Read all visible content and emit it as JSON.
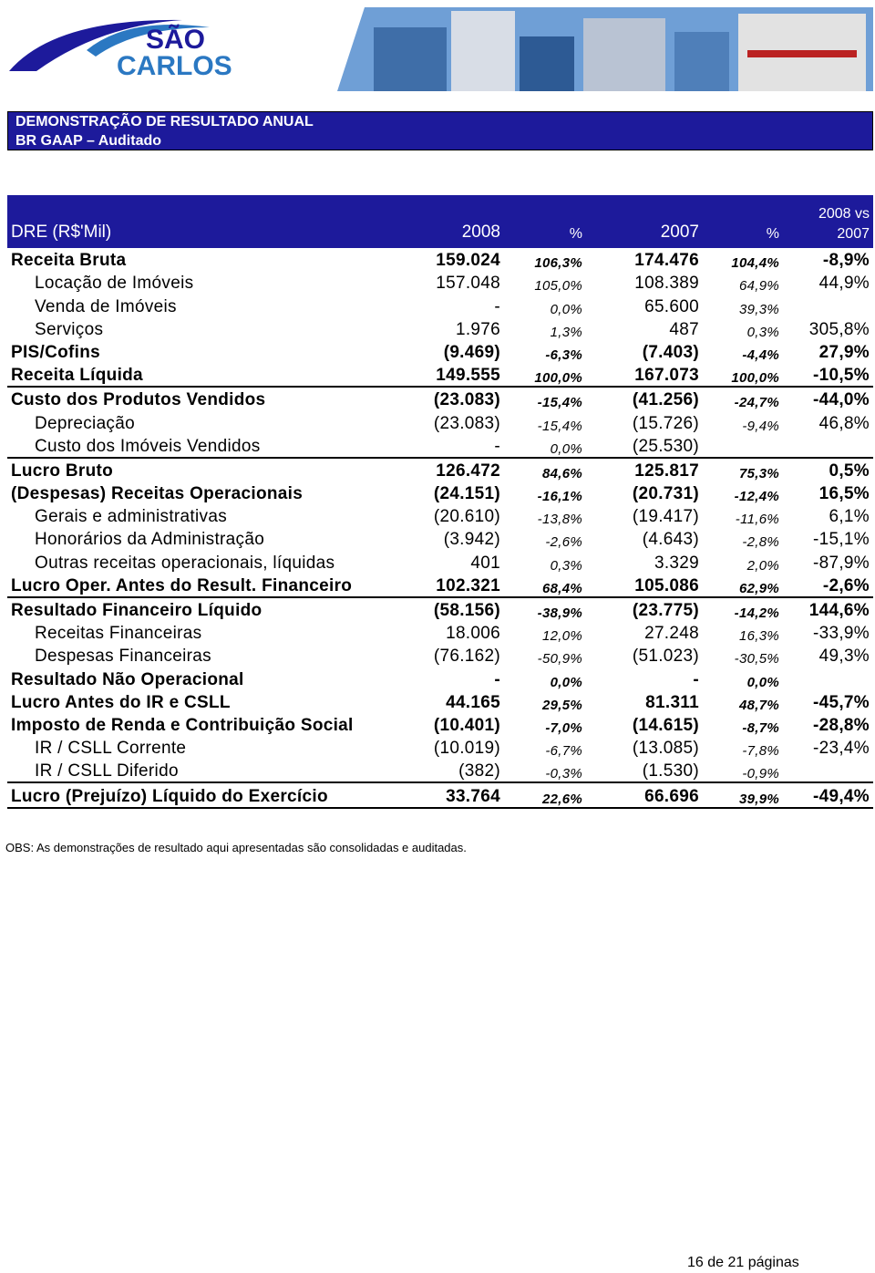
{
  "logo": {
    "line1": "SÃO",
    "line2": "CARLOS"
  },
  "banner": {
    "title": "DEMONSTRAÇÃO DE RESULTADO ANUAL",
    "subtitle": "BR GAAP – Auditado"
  },
  "table": {
    "header": [
      "DRE (R$'Mil)",
      "2008",
      "%",
      "2007",
      "%",
      "2008 vs 2007"
    ],
    "rows": [
      [
        "Receita Bruta",
        "159.024",
        "106,3%",
        "174.476",
        "104,4%",
        "-8,9%"
      ],
      [
        "Locação de Imóveis",
        "157.048",
        "105,0%",
        "108.389",
        "64,9%",
        "44,9%"
      ],
      [
        "Venda de Imóveis",
        "-",
        "0,0%",
        "65.600",
        "39,3%",
        null
      ],
      [
        "Serviços",
        "1.976",
        "1,3%",
        "487",
        "0,3%",
        "305,8%"
      ],
      [
        "PIS/Cofins",
        "(9.469)",
        "-6,3%",
        "(7.403)",
        "-4,4%",
        "27,9%"
      ],
      [
        "Receita Líquida",
        "149.555",
        "100,0%",
        "167.073",
        "100,0%",
        "-10,5%"
      ],
      [
        "Custo dos Produtos Vendidos",
        "(23.083)",
        "-15,4%",
        "(41.256)",
        "-24,7%",
        "-44,0%"
      ],
      [
        "Depreciação",
        "(23.083)",
        "-15,4%",
        "(15.726)",
        "-9,4%",
        "46,8%"
      ],
      [
        "Custo dos Imóveis Vendidos",
        "-",
        "0,0%",
        "(25.530)",
        null,
        null
      ],
      [
        "Lucro Bruto",
        "126.472",
        "84,6%",
        "125.817",
        "75,3%",
        "0,5%"
      ],
      [
        "(Despesas) Receitas Operacionais",
        "(24.151)",
        "-16,1%",
        "(20.731)",
        "-12,4%",
        "16,5%"
      ],
      [
        "Gerais e administrativas",
        "(20.610)",
        "-13,8%",
        "(19.417)",
        "-11,6%",
        "6,1%"
      ],
      [
        "Honorários da Administração",
        "(3.942)",
        "-2,6%",
        "(4.643)",
        "-2,8%",
        "-15,1%"
      ],
      [
        "Outras receitas operacionais, líquidas",
        "401",
        "0,3%",
        "3.329",
        "2,0%",
        "-87,9%"
      ],
      [
        "Lucro Oper. Antes do Result. Financeiro",
        "102.321",
        "68,4%",
        "105.086",
        "62,9%",
        "-2,6%"
      ],
      [
        "Resultado Financeiro Líquido",
        "(58.156)",
        "-38,9%",
        "(23.775)",
        "-14,2%",
        "144,6%"
      ],
      [
        "Receitas Financeiras",
        "18.006",
        "12,0%",
        "27.248",
        "16,3%",
        "-33,9%"
      ],
      [
        "Despesas Financeiras",
        "(76.162)",
        "-50,9%",
        "(51.023)",
        "-30,5%",
        "49,3%"
      ],
      [
        "Resultado Não Operacional",
        "-",
        "0,0%",
        "-",
        "0,0%",
        null
      ],
      [
        "Lucro Antes do IR e CSLL",
        "44.165",
        "29,5%",
        "81.311",
        "48,7%",
        "-45,7%"
      ],
      [
        "Imposto de Renda e Contribuição Social",
        "(10.401)",
        "-7,0%",
        "(14.615)",
        "-8,7%",
        "-28,8%"
      ],
      [
        "IR / CSLL Corrente",
        "(10.019)",
        "-6,7%",
        "(13.085)",
        "-7,8%",
        "-23,4%"
      ],
      [
        "IR / CSLL Diferido",
        "(382)",
        "-0,3%",
        "(1.530)",
        "-0,9%",
        null
      ],
      [
        "Lucro (Prejuízo) Líquido do Exercício",
        "33.764",
        "22,6%",
        "66.696",
        "39,9%",
        "-49,4%"
      ]
    ]
  },
  "note": "OBS: As demonstrações de resultado aqui apresentadas são consolidadas e auditadas.",
  "page": "16 de 21 páginas"
}
